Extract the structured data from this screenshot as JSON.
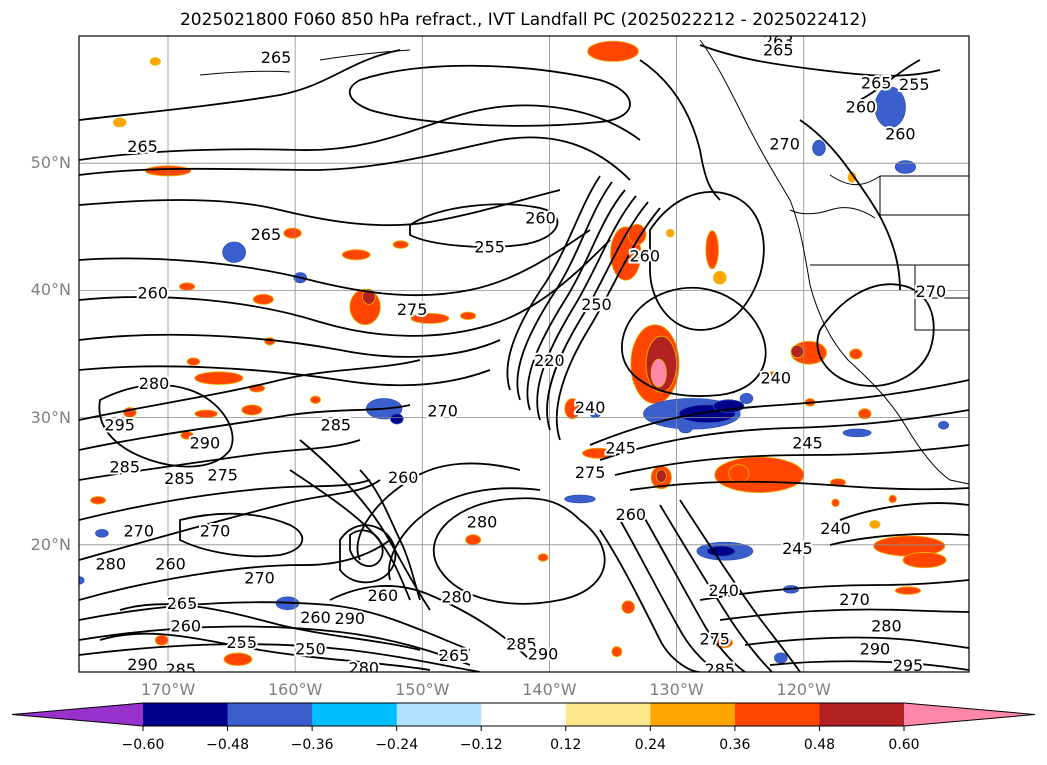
{
  "title": "2025021800 F060 850 hPa refract., IVT Landfall PC (2025022212 - 2025022412)",
  "map": {
    "projection": "equirectangular",
    "lon_range": [
      -177,
      -107
    ],
    "lat_range": [
      10,
      60
    ],
    "grid": true,
    "lat_labels": [
      "50°N",
      "40°N",
      "30°N",
      "20°N"
    ],
    "lat_values": [
      50,
      40,
      30,
      20
    ],
    "lon_labels": [
      "170°W",
      "160°W",
      "150°W",
      "140°W",
      "130°W",
      "120°W"
    ],
    "lon_values": [
      -170,
      -160,
      -150,
      -140,
      -130,
      -120
    ],
    "contour_color": "#000000",
    "contour_labels": [
      {
        "text": "265",
        "lon": -161.5,
        "lat": 58.3
      },
      {
        "text": "263",
        "lon": -122,
        "lat": 59.6
      },
      {
        "text": "265",
        "lon": -122,
        "lat": 58.9
      },
      {
        "text": "265",
        "lon": -114.3,
        "lat": 56.3
      },
      {
        "text": "255",
        "lon": -111.3,
        "lat": 56.2
      },
      {
        "text": "260",
        "lon": -115.5,
        "lat": 54.4
      },
      {
        "text": "260",
        "lon": -112.4,
        "lat": 52.3
      },
      {
        "text": "265",
        "lon": -172,
        "lat": 51.3
      },
      {
        "text": "260",
        "lon": -140.7,
        "lat": 45.7
      },
      {
        "text": "255",
        "lon": -144.7,
        "lat": 43.4
      },
      {
        "text": "265",
        "lon": -162.3,
        "lat": 44.4
      },
      {
        "text": "260",
        "lon": -132.5,
        "lat": 42.7
      },
      {
        "text": "260",
        "lon": -171.2,
        "lat": 39.8
      },
      {
        "text": "275",
        "lon": -150.8,
        "lat": 38.5
      },
      {
        "text": "250",
        "lon": -136.3,
        "lat": 38.9
      },
      {
        "text": "270",
        "lon": -121.5,
        "lat": 51.5
      },
      {
        "text": "270",
        "lon": -110,
        "lat": 39.9
      },
      {
        "text": "220",
        "lon": -140,
        "lat": 34.5
      },
      {
        "text": "280",
        "lon": -171.1,
        "lat": 32.7
      },
      {
        "text": "240",
        "lon": -122.2,
        "lat": 33.1
      },
      {
        "text": "240",
        "lon": -136.8,
        "lat": 30.8
      },
      {
        "text": "270",
        "lon": -148.4,
        "lat": 30.5
      },
      {
        "text": "295",
        "lon": -173.8,
        "lat": 29.4
      },
      {
        "text": "285",
        "lon": -156.8,
        "lat": 29.4
      },
      {
        "text": "290",
        "lon": -167.1,
        "lat": 28
      },
      {
        "text": "245",
        "lon": -134.4,
        "lat": 27.6
      },
      {
        "text": "245",
        "lon": -119.7,
        "lat": 28
      },
      {
        "text": "285",
        "lon": -173.4,
        "lat": 26.1
      },
      {
        "text": "285",
        "lon": -169.1,
        "lat": 25.2
      },
      {
        "text": "275",
        "lon": -165.7,
        "lat": 25.5
      },
      {
        "text": "260",
        "lon": -151.5,
        "lat": 25.3
      },
      {
        "text": "275",
        "lon": -136.8,
        "lat": 25.7
      },
      {
        "text": "260",
        "lon": -133.6,
        "lat": 22.4
      },
      {
        "text": "280",
        "lon": -145.3,
        "lat": 21.8
      },
      {
        "text": "240",
        "lon": -117.5,
        "lat": 21.3
      },
      {
        "text": "270",
        "lon": -172.3,
        "lat": 21.1
      },
      {
        "text": "270",
        "lon": -166.3,
        "lat": 21.1
      },
      {
        "text": "245",
        "lon": -120.5,
        "lat": 19.7
      },
      {
        "text": "280",
        "lon": -174.5,
        "lat": 18.5
      },
      {
        "text": "260",
        "lon": -169.8,
        "lat": 18.5
      },
      {
        "text": "270",
        "lon": -162.8,
        "lat": 17.4
      },
      {
        "text": "260",
        "lon": -153.1,
        "lat": 16
      },
      {
        "text": "280",
        "lon": -147.3,
        "lat": 15.9
      },
      {
        "text": "240",
        "lon": -126.3,
        "lat": 16.4
      },
      {
        "text": "270",
        "lon": -116,
        "lat": 15.7
      },
      {
        "text": "265",
        "lon": -168.9,
        "lat": 15.4
      },
      {
        "text": "260",
        "lon": -168.6,
        "lat": 13.6
      },
      {
        "text": "260",
        "lon": -158.4,
        "lat": 14.3
      },
      {
        "text": "290",
        "lon": -155.7,
        "lat": 14.2
      },
      {
        "text": "280",
        "lon": -113.5,
        "lat": 13.6
      },
      {
        "text": "255",
        "lon": -164.2,
        "lat": 12.3
      },
      {
        "text": "250",
        "lon": -158.8,
        "lat": 11.8
      },
      {
        "text": "265",
        "lon": -147.5,
        "lat": 11.3
      },
      {
        "text": "285",
        "lon": -142.2,
        "lat": 12.2
      },
      {
        "text": "290",
        "lon": -140.5,
        "lat": 11.4
      },
      {
        "text": "275",
        "lon": -127,
        "lat": 12.6
      },
      {
        "text": "290",
        "lon": -114.4,
        "lat": 11.8
      },
      {
        "text": "290",
        "lon": -172,
        "lat": 10.6
      },
      {
        "text": "285",
        "lon": -169,
        "lat": 10.2
      },
      {
        "text": "280",
        "lon": -154.6,
        "lat": 10.3
      },
      {
        "text": "285",
        "lon": -126.6,
        "lat": 10.2
      },
      {
        "text": "295",
        "lon": -111.8,
        "lat": 10.5
      }
    ],
    "shaded_regions": [
      {
        "lon": -171,
        "lat": 58,
        "rx": 0.4,
        "ry": 0.3,
        "bin": "0.24"
      },
      {
        "lon": -173.8,
        "lat": 53.2,
        "rx": 0.5,
        "ry": 0.35,
        "bin": "0.24"
      },
      {
        "lon": -170,
        "lat": 49.4,
        "rx": 1.8,
        "ry": 0.4,
        "bin": "0.36"
      },
      {
        "lon": -135,
        "lat": 58.8,
        "rx": 2,
        "ry": 0.8,
        "bin": "0.36"
      },
      {
        "lon": -113.2,
        "lat": 54.4,
        "rx": 1.2,
        "ry": 1.6,
        "bin": "-0.36"
      },
      {
        "lon": -112,
        "lat": 49.7,
        "rx": 0.8,
        "ry": 0.5,
        "bin": "-0.36"
      },
      {
        "lon": -118.8,
        "lat": 51.2,
        "rx": 0.5,
        "ry": 0.6,
        "bin": "-0.36"
      },
      {
        "lon": -116.2,
        "lat": 48.9,
        "rx": 0.3,
        "ry": 0.4,
        "bin": "0.24"
      },
      {
        "lon": -160.2,
        "lat": 44.5,
        "rx": 0.7,
        "ry": 0.4,
        "bin": "0.36"
      },
      {
        "lon": -155.2,
        "lat": 42.8,
        "rx": 1.1,
        "ry": 0.4,
        "bin": "0.36"
      },
      {
        "lon": -151.7,
        "lat": 43.6,
        "rx": 0.6,
        "ry": 0.3,
        "bin": "0.36"
      },
      {
        "lon": -164.8,
        "lat": 43,
        "rx": 0.9,
        "ry": 0.8,
        "bin": "-0.36"
      },
      {
        "lon": -159.6,
        "lat": 41,
        "rx": 0.5,
        "ry": 0.4,
        "bin": "-0.36"
      },
      {
        "lon": -154.5,
        "lat": 38.7,
        "rx": 1.2,
        "ry": 1.4,
        "bin": "0.36"
      },
      {
        "lon": -154.2,
        "lat": 39.5,
        "rx": 0.5,
        "ry": 0.6,
        "bin": "0.48"
      },
      {
        "lon": -162.5,
        "lat": 39.3,
        "rx": 0.8,
        "ry": 0.4,
        "bin": "0.36"
      },
      {
        "lon": -168.5,
        "lat": 40.3,
        "rx": 0.6,
        "ry": 0.3,
        "bin": "0.36"
      },
      {
        "lon": -149.4,
        "lat": 37.8,
        "rx": 1.5,
        "ry": 0.4,
        "bin": "0.36"
      },
      {
        "lon": -146.4,
        "lat": 38,
        "rx": 0.6,
        "ry": 0.3,
        "bin": "0.36"
      },
      {
        "lon": -162,
        "lat": 36,
        "rx": 0.4,
        "ry": 0.3,
        "bin": "0.36"
      },
      {
        "lon": -168,
        "lat": 34.4,
        "rx": 0.5,
        "ry": 0.3,
        "bin": "0.36"
      },
      {
        "lon": -166,
        "lat": 33.1,
        "rx": 1.9,
        "ry": 0.5,
        "bin": "0.36"
      },
      {
        "lon": -163,
        "lat": 32.3,
        "rx": 0.6,
        "ry": 0.3,
        "bin": "0.36"
      },
      {
        "lon": -173,
        "lat": 30.4,
        "rx": 0.5,
        "ry": 0.4,
        "bin": "0.36"
      },
      {
        "lon": -167,
        "lat": 30.3,
        "rx": 0.9,
        "ry": 0.3,
        "bin": "0.36"
      },
      {
        "lon": -163.4,
        "lat": 30.6,
        "rx": 0.8,
        "ry": 0.4,
        "bin": "0.36"
      },
      {
        "lon": -168.5,
        "lat": 28.6,
        "rx": 0.5,
        "ry": 0.3,
        "bin": "0.36"
      },
      {
        "lon": -153,
        "lat": 30.7,
        "rx": 1.4,
        "ry": 0.8,
        "bin": "-0.36"
      },
      {
        "lon": -152,
        "lat": 29.9,
        "rx": 0.5,
        "ry": 0.4,
        "bin": "-0.48"
      },
      {
        "lon": -158.4,
        "lat": 31.4,
        "rx": 0.4,
        "ry": 0.3,
        "bin": "0.36"
      },
      {
        "lon": -138.2,
        "lat": 30.7,
        "rx": 0.6,
        "ry": 0.8,
        "bin": "0.36"
      },
      {
        "lon": -136.4,
        "lat": 30.3,
        "rx": 0.4,
        "ry": 0.3,
        "bin": "-0.36"
      },
      {
        "lon": -134,
        "lat": 42.9,
        "rx": 1.2,
        "ry": 2.1,
        "bin": "0.36"
      },
      {
        "lon": -133.1,
        "lat": 44.4,
        "rx": 0.7,
        "ry": 0.8,
        "bin": "0.36"
      },
      {
        "lon": -130.5,
        "lat": 44.5,
        "rx": 0.3,
        "ry": 0.3,
        "bin": "0.24"
      },
      {
        "lon": -131.7,
        "lat": 34.2,
        "rx": 1.9,
        "ry": 3.1,
        "bin": "0.36"
      },
      {
        "lon": -131.2,
        "lat": 34.2,
        "rx": 1.2,
        "ry": 2.2,
        "bin": "0.48"
      },
      {
        "lon": -131.4,
        "lat": 33.5,
        "rx": 0.6,
        "ry": 1.1,
        "bin": "0.60"
      },
      {
        "lon": -128.8,
        "lat": 30.3,
        "rx": 3.8,
        "ry": 1.2,
        "bin": "-0.36"
      },
      {
        "lon": -127.6,
        "lat": 30.3,
        "rx": 2.2,
        "ry": 0.7,
        "bin": "-0.48"
      },
      {
        "lon": -125.9,
        "lat": 30.9,
        "rx": 1.2,
        "ry": 0.5,
        "bin": "-0.48"
      },
      {
        "lon": -124.5,
        "lat": 31.5,
        "rx": 0.5,
        "ry": 0.4,
        "bin": "-0.36"
      },
      {
        "lon": -129.3,
        "lat": 29.1,
        "rx": 0.5,
        "ry": 0.3,
        "bin": "-0.36"
      },
      {
        "lon": -123.5,
        "lat": 25.5,
        "rx": 3.5,
        "ry": 1.4,
        "bin": "0.36"
      },
      {
        "lon": -125.1,
        "lat": 25.6,
        "rx": 0.8,
        "ry": 0.7,
        "bin": "0.36"
      },
      {
        "lon": -131.2,
        "lat": 25.3,
        "rx": 0.8,
        "ry": 0.9,
        "bin": "0.36"
      },
      {
        "lon": -131.2,
        "lat": 25.4,
        "rx": 0.4,
        "ry": 0.5,
        "bin": "0.48"
      },
      {
        "lon": -136.2,
        "lat": 27.2,
        "rx": 1.2,
        "ry": 0.4,
        "bin": "0.36"
      },
      {
        "lon": -127.2,
        "lat": 43.2,
        "rx": 0.5,
        "ry": 1.5,
        "bin": "0.36"
      },
      {
        "lon": -126.6,
        "lat": 41,
        "rx": 0.5,
        "ry": 0.5,
        "bin": "0.24"
      },
      {
        "lon": -119.6,
        "lat": 35.1,
        "rx": 1.4,
        "ry": 0.9,
        "bin": "0.36"
      },
      {
        "lon": -120.5,
        "lat": 35.2,
        "rx": 0.5,
        "ry": 0.5,
        "bin": "0.48"
      },
      {
        "lon": -115.9,
        "lat": 35,
        "rx": 0.5,
        "ry": 0.4,
        "bin": "0.36"
      },
      {
        "lon": -115.2,
        "lat": 30.3,
        "rx": 0.5,
        "ry": 0.4,
        "bin": "0.36"
      },
      {
        "lon": -119.5,
        "lat": 31.2,
        "rx": 0.4,
        "ry": 0.3,
        "bin": "0.36"
      },
      {
        "lon": -115.8,
        "lat": 28.8,
        "rx": 1.1,
        "ry": 0.3,
        "bin": "-0.36"
      },
      {
        "lon": -109,
        "lat": 29.4,
        "rx": 0.4,
        "ry": 0.3,
        "bin": "-0.36"
      },
      {
        "lon": -122.5,
        "lat": 33.3,
        "rx": 0.6,
        "ry": 0.3,
        "bin": "0.36"
      },
      {
        "lon": -111.7,
        "lat": 19.9,
        "rx": 2.8,
        "ry": 0.8,
        "bin": "0.36"
      },
      {
        "lon": -110.5,
        "lat": 18.8,
        "rx": 1.7,
        "ry": 0.6,
        "bin": "0.36"
      },
      {
        "lon": -114.4,
        "lat": 21.6,
        "rx": 0.4,
        "ry": 0.3,
        "bin": "0.24"
      },
      {
        "lon": -126.2,
        "lat": 19.5,
        "rx": 2.2,
        "ry": 0.7,
        "bin": "-0.36"
      },
      {
        "lon": -126.5,
        "lat": 19.5,
        "rx": 1.1,
        "ry": 0.4,
        "bin": "-0.48"
      },
      {
        "lon": -121,
        "lat": 16.5,
        "rx": 0.6,
        "ry": 0.3,
        "bin": "-0.36"
      },
      {
        "lon": -111.8,
        "lat": 16.4,
        "rx": 1,
        "ry": 0.3,
        "bin": "0.36"
      },
      {
        "lon": -117.5,
        "lat": 23.3,
        "rx": 0.3,
        "ry": 0.3,
        "bin": "0.36"
      },
      {
        "lon": -117.3,
        "lat": 24.9,
        "rx": 0.6,
        "ry": 0.3,
        "bin": "0.36"
      },
      {
        "lon": -113,
        "lat": 23.6,
        "rx": 0.3,
        "ry": 0.3,
        "bin": "0.36"
      },
      {
        "lon": -146,
        "lat": 20.4,
        "rx": 0.6,
        "ry": 0.4,
        "bin": "0.36"
      },
      {
        "lon": -137.6,
        "lat": 23.6,
        "rx": 1.2,
        "ry": 0.3,
        "bin": "-0.36"
      },
      {
        "lon": -160.6,
        "lat": 15.4,
        "rx": 0.9,
        "ry": 0.5,
        "bin": "-0.36"
      },
      {
        "lon": -133.8,
        "lat": 15.1,
        "rx": 0.5,
        "ry": 0.5,
        "bin": "0.36"
      },
      {
        "lon": -134.7,
        "lat": 11.6,
        "rx": 0.4,
        "ry": 0.4,
        "bin": "0.36"
      },
      {
        "lon": -164.5,
        "lat": 11,
        "rx": 1.1,
        "ry": 0.5,
        "bin": "0.36"
      },
      {
        "lon": -126.3,
        "lat": 12.3,
        "rx": 0.7,
        "ry": 0.4,
        "bin": "0.36"
      },
      {
        "lon": -121.8,
        "lat": 11.1,
        "rx": 0.5,
        "ry": 0.4,
        "bin": "-0.36"
      },
      {
        "lon": -170.5,
        "lat": 12.5,
        "rx": 0.5,
        "ry": 0.4,
        "bin": "0.36"
      },
      {
        "lon": -175.5,
        "lat": 23.5,
        "rx": 0.6,
        "ry": 0.3,
        "bin": "0.36"
      },
      {
        "lon": -175.2,
        "lat": 20.9,
        "rx": 0.5,
        "ry": 0.3,
        "bin": "-0.36"
      },
      {
        "lon": -177,
        "lat": 17.2,
        "rx": 0.4,
        "ry": 0.3,
        "bin": "-0.36"
      },
      {
        "lon": -140.5,
        "lat": 19,
        "rx": 0.4,
        "ry": 0.3,
        "bin": "0.36"
      }
    ]
  },
  "colorbar": {
    "bounds": [
      -0.72,
      -0.6,
      -0.48,
      -0.36,
      -0.24,
      -0.12,
      0.12,
      0.24,
      0.36,
      0.48,
      0.6,
      0.72
    ],
    "colors": [
      "#9932cc",
      "#00008b",
      "#3a5fcd",
      "#00bfff",
      "#b0e2ff",
      "#ffffff",
      "#fee88e",
      "#ffa500",
      "#ff4500",
      "#b22222",
      "#ff88aa"
    ],
    "under_color": "#9932cc",
    "over_color": "#ff88aa",
    "tick_labels": [
      "−0.60",
      "−0.48",
      "−0.36",
      "−0.24",
      "−0.12",
      "0.12",
      "0.24",
      "0.36",
      "0.48",
      "0.60"
    ],
    "tick_values": [
      -0.6,
      -0.48,
      -0.36,
      -0.24,
      -0.12,
      0.12,
      0.24,
      0.36,
      0.48,
      0.6
    ]
  }
}
